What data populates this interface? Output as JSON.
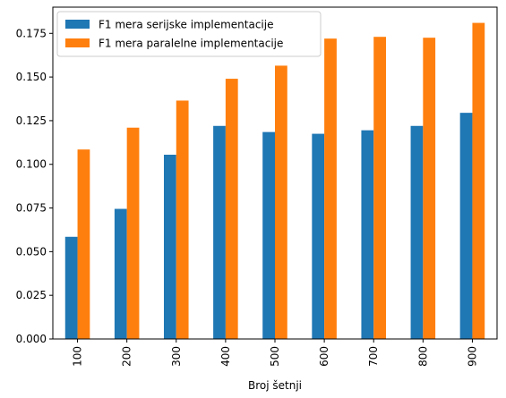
{
  "chart_data": {
    "type": "bar",
    "title": "",
    "xlabel": "Broj šetnji",
    "ylabel": "",
    "categories": [
      "100",
      "200",
      "300",
      "400",
      "500",
      "600",
      "700",
      "800",
      "900"
    ],
    "series": [
      {
        "name": "F1 mera serijske implementacije",
        "color": "#1f77b4",
        "values": [
          0.0585,
          0.0745,
          0.1055,
          0.122,
          0.1185,
          0.1175,
          0.1195,
          0.122,
          0.1295
        ]
      },
      {
        "name": "F1 mera paralelne implementacije",
        "color": "#ff7f0e",
        "values": [
          0.1085,
          0.121,
          0.1365,
          0.149,
          0.1565,
          0.172,
          0.173,
          0.1725,
          0.181
        ]
      }
    ],
    "ylim": [
      0,
      0.19
    ],
    "yticks": [
      "0.000",
      "0.025",
      "0.050",
      "0.075",
      "0.100",
      "0.125",
      "0.150",
      "0.175"
    ],
    "legend_position": "top-left",
    "grid": false
  }
}
